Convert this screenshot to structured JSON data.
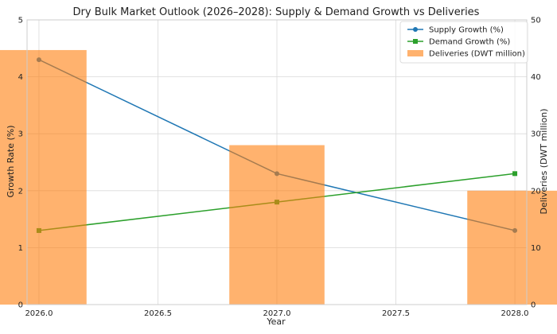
{
  "chart_data": {
    "type": "bar+line",
    "title": "Dry Bulk Market Outlook (2026–2028): Supply & Demand Growth vs Deliveries",
    "xlabel": "Year",
    "ylabel_left": "Growth Rate (%)",
    "ylabel_right": "Deliveries (DWT million)",
    "x": [
      2026,
      2027,
      2028
    ],
    "xlim": [
      2025.95,
      2028.05
    ],
    "x_ticks": [
      2026.0,
      2026.5,
      2027.0,
      2027.5,
      2028.0
    ],
    "x_tick_labels": [
      "2026.0",
      "2026.5",
      "2027.0",
      "2027.5",
      "2028.0"
    ],
    "ylim_left": [
      0,
      5
    ],
    "y_ticks_left": [
      0,
      1,
      2,
      3,
      4,
      5
    ],
    "ylim_right": [
      0,
      50
    ],
    "y_ticks_right": [
      0,
      10,
      20,
      30,
      40,
      50
    ],
    "bar_width_years": 0.4,
    "grid": true,
    "legend_position": "top-right",
    "series": [
      {
        "name": "Supply Growth (%)",
        "kind": "line",
        "axis": "left",
        "marker": "circle",
        "color": "#1f77b4",
        "values": [
          4.3,
          2.3,
          1.3
        ]
      },
      {
        "name": "Demand Growth (%)",
        "kind": "line",
        "axis": "left",
        "marker": "square",
        "color": "#2ca02c",
        "values": [
          1.3,
          1.8,
          2.3
        ]
      },
      {
        "name": "Deliveries (DWT million)",
        "kind": "bar",
        "axis": "right",
        "color": "#ff7f0e",
        "opacity": 0.6,
        "values": [
          44.7,
          28.0,
          20.0
        ]
      }
    ]
  }
}
